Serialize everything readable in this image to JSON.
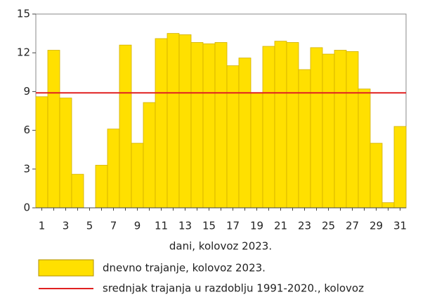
{
  "chart_data": {
    "type": "bar",
    "xlabel": "dani, kolovoz 2023.",
    "categories": [
      "1",
      null,
      "3",
      null,
      "5",
      null,
      "7",
      null,
      "9",
      null,
      "11",
      null,
      "13",
      null,
      "15",
      null,
      "17",
      null,
      "19",
      null,
      "21",
      null,
      "23",
      null,
      "25",
      null,
      "27",
      null,
      "29",
      null,
      "31"
    ],
    "series": [
      {
        "name": "dnevno trajanje, kolovoz 2023.",
        "color": "#ffe000",
        "values": [
          8.6,
          12.2,
          8.5,
          2.6,
          0,
          3.3,
          6.1,
          12.6,
          5.0,
          8.15,
          13.1,
          13.5,
          13.4,
          12.8,
          12.7,
          12.8,
          11.0,
          11.6,
          8.9,
          12.5,
          12.9,
          12.8,
          10.7,
          12.4,
          11.9,
          12.2,
          12.1,
          9.2,
          5.0,
          0.4,
          6.3
        ]
      }
    ],
    "average_line": {
      "name": "srednjak trajanja u razdoblju 1991-2020., kolovoz",
      "value": 8.9,
      "color": "#e02020"
    },
    "ylim": [
      0,
      15
    ],
    "yticks": [
      0,
      3,
      6,
      9,
      12,
      15
    ]
  }
}
